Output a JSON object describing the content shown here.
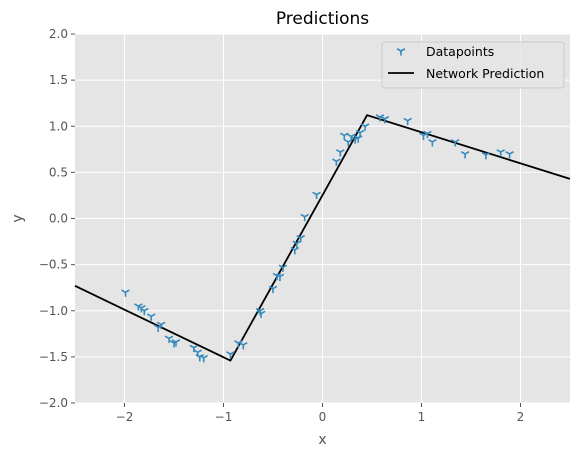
{
  "chart_data": {
    "type": "scatter",
    "title": "Predictions",
    "xlabel": "x",
    "ylabel": "y",
    "xlim": [
      -2.5,
      2.5
    ],
    "ylim": [
      -2.0,
      2.0
    ],
    "xticks": [
      -2,
      -1,
      0,
      1,
      2
    ],
    "yticks": [
      -2.0,
      -1.5,
      -1.0,
      -0.5,
      0.0,
      0.5,
      1.0,
      1.5,
      2.0
    ],
    "xtick_labels": [
      "−2",
      "−1",
      "0",
      "1",
      "2"
    ],
    "ytick_labels": [
      "−2.0",
      "−1.5",
      "−1.0",
      "−0.5",
      "0.0",
      "0.5",
      "1.0",
      "1.5",
      "2.0"
    ],
    "grid": true,
    "legend_position": "top-right",
    "series": [
      {
        "name": "Datapoints",
        "kind": "scatter",
        "marker": "tri_down",
        "color": "#348ABD",
        "points": [
          [
            -1.99,
            -0.8
          ],
          [
            -1.86,
            -0.95
          ],
          [
            -1.83,
            -0.97
          ],
          [
            -1.8,
            -1.0
          ],
          [
            -1.73,
            -1.06
          ],
          [
            -1.66,
            -1.18
          ],
          [
            -1.63,
            -1.15
          ],
          [
            -1.55,
            -1.3
          ],
          [
            -1.5,
            -1.35
          ],
          [
            -1.48,
            -1.34
          ],
          [
            -1.3,
            -1.4
          ],
          [
            -1.26,
            -1.45
          ],
          [
            -1.24,
            -1.5
          ],
          [
            -1.2,
            -1.51
          ],
          [
            -0.93,
            -1.47
          ],
          [
            -0.85,
            -1.35
          ],
          [
            -0.8,
            -1.37
          ],
          [
            -0.63,
            -1.0
          ],
          [
            -0.62,
            -1.03
          ],
          [
            -0.5,
            -0.76
          ],
          [
            -0.46,
            -0.62
          ],
          [
            -0.43,
            -0.63
          ],
          [
            -0.4,
            -0.53
          ],
          [
            -0.28,
            -0.34
          ],
          [
            -0.26,
            -0.27
          ],
          [
            -0.22,
            -0.21
          ],
          [
            -0.18,
            0.02
          ],
          [
            -0.06,
            0.26
          ],
          [
            0.14,
            0.62
          ],
          [
            0.18,
            0.72
          ],
          [
            0.22,
            0.9
          ],
          [
            0.26,
            0.83
          ],
          [
            0.29,
            0.89
          ],
          [
            0.33,
            0.86
          ],
          [
            0.36,
            0.87
          ],
          [
            0.38,
            0.93
          ],
          [
            0.43,
            1.0
          ],
          [
            0.58,
            1.1
          ],
          [
            0.63,
            1.08
          ],
          [
            0.86,
            1.06
          ],
          [
            1.02,
            0.9
          ],
          [
            1.06,
            0.92
          ],
          [
            1.11,
            0.83
          ],
          [
            1.34,
            0.83
          ],
          [
            1.44,
            0.7
          ],
          [
            1.65,
            0.69
          ],
          [
            1.8,
            0.72
          ],
          [
            1.89,
            0.7
          ]
        ]
      },
      {
        "name": "Network Prediction",
        "kind": "line",
        "color": "#000000",
        "points": [
          [
            -2.5,
            -0.73
          ],
          [
            -0.93,
            -1.54
          ],
          [
            0.45,
            1.12
          ],
          [
            2.5,
            0.43
          ]
        ]
      }
    ]
  }
}
